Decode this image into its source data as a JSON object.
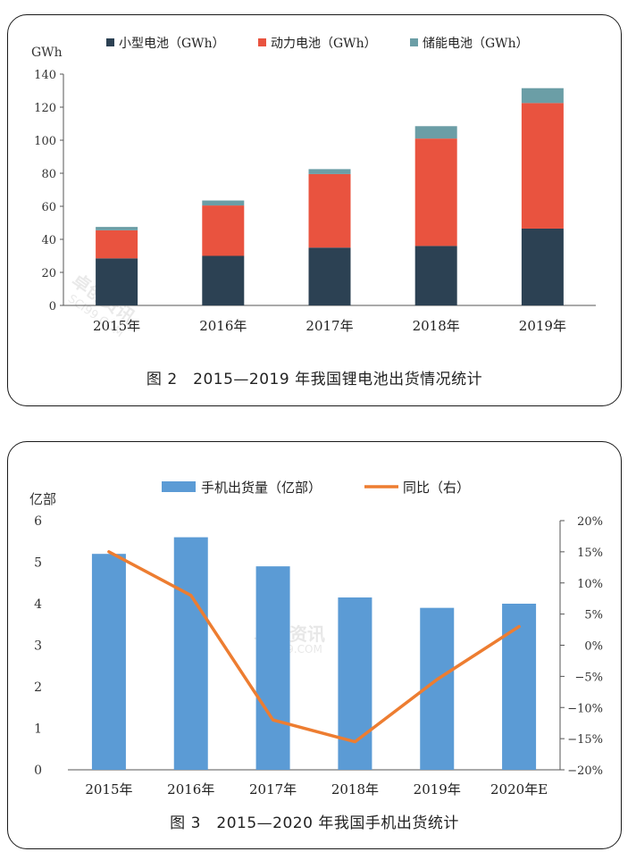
{
  "charts": [
    {
      "chart_data": {
        "type": "bar",
        "stacked": true,
        "title": "",
        "caption": "图 2　2015—2019 年我国锂电池出货情况统计",
        "ylabel": "GWh",
        "xlabel": "",
        "ylim": [
          0,
          140
        ],
        "yticks": [
          0,
          20,
          40,
          60,
          80,
          100,
          120,
          140
        ],
        "categories": [
          "2015年",
          "2016年",
          "2017年",
          "2018年",
          "2019年"
        ],
        "series": [
          {
            "name": "小型电池（GWh）",
            "values": [
              28.5,
              30,
              35,
              36,
              46.5
            ],
            "color": "#2c4153"
          },
          {
            "name": "动力电池（GWh）",
            "values": [
              17,
              30.5,
              44.5,
              65,
              76
            ],
            "color": "#e9533f"
          },
          {
            "name": "储能电池（GWh）",
            "values": [
              2,
              3,
              3,
              7.5,
              9
            ],
            "color": "#6b9ea6"
          }
        ],
        "legend": "top",
        "grid": false
      }
    },
    {
      "chart_data": {
        "type": "bar+line",
        "title": "",
        "caption": "图 3　2015—2020 年我国手机出货统计",
        "ylabel": "亿部",
        "xlabel": "",
        "ylim": [
          0,
          6
        ],
        "yticks": [
          0,
          1,
          2,
          3,
          4,
          5,
          6
        ],
        "y2lim": [
          -20,
          20
        ],
        "y2ticks": [
          "20%",
          "15%",
          "10%",
          "5%",
          "0%",
          "−5%",
          "−10%",
          "−15%",
          "−20%"
        ],
        "categories": [
          "2015年",
          "2016年",
          "2017年",
          "2018年",
          "2019年",
          "2020年E"
        ],
        "series": [
          {
            "name": "手机出货量（亿部）",
            "type": "bar",
            "axis": "left",
            "values": [
              5.2,
              5.6,
              4.9,
              4.15,
              3.9,
              4.0
            ],
            "color": "#5b9bd5"
          },
          {
            "name": "同比（右）",
            "type": "line",
            "axis": "right",
            "values": [
              15,
              8,
              -12,
              -15.5,
              -5.5,
              3
            ],
            "color": "#ed7d31"
          }
        ],
        "legend": "top",
        "grid": false
      }
    }
  ],
  "watermark": {
    "cn": "卓创资讯",
    "en": "SCI99.COM"
  }
}
